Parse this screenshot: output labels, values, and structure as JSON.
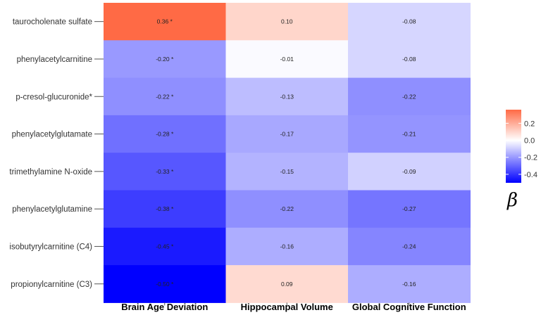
{
  "chart_data": {
    "type": "heatmap",
    "title": "",
    "xlabel": "",
    "ylabel": "",
    "rows": [
      "taurocholenate sulfate",
      "phenylacetylcarnitine",
      "p-cresol-glucuronide*",
      "phenylacetylglutamate",
      "trimethylamine N-oxide",
      "phenylacetylglutamine",
      "isobutyrylcarnitine (C4)",
      "propionylcarnitine (C3)"
    ],
    "columns": [
      "Brain Age Deviation",
      "Hippocampal Volume",
      "Global Cognitive Function"
    ],
    "values": [
      [
        0.36,
        0.1,
        -0.08
      ],
      [
        -0.2,
        -0.01,
        -0.08
      ],
      [
        -0.22,
        -0.13,
        -0.22
      ],
      [
        -0.28,
        -0.17,
        -0.21
      ],
      [
        -0.33,
        -0.15,
        -0.09
      ],
      [
        -0.38,
        -0.22,
        -0.27
      ],
      [
        -0.45,
        -0.16,
        -0.24
      ],
      [
        -0.5,
        0.09,
        -0.16
      ]
    ],
    "labels": [
      [
        "0.36 *",
        "0.10",
        "-0.08"
      ],
      [
        "-0.20 *",
        "-0.01",
        "-0.08"
      ],
      [
        "-0.22 *",
        "-0.13",
        "-0.22"
      ],
      [
        "-0.28 *",
        "-0.17",
        "-0.21"
      ],
      [
        "-0.33 *",
        "-0.15",
        "-0.09"
      ],
      [
        "-0.38 *",
        "-0.22",
        "-0.27"
      ],
      [
        "-0.45 *",
        "-0.16",
        "-0.24"
      ],
      [
        "-0.50 *",
        "0.09",
        "-0.16"
      ]
    ],
    "legend": {
      "title": "β",
      "ticks": [
        0.2,
        0.0,
        -0.2,
        -0.4
      ],
      "tick_labels": [
        "0.2",
        "0.0",
        "-0.2",
        "-0.4"
      ],
      "range": [
        -0.5,
        0.36
      ],
      "colors": {
        "low": "#0000ff",
        "mid": "#ffffff",
        "high": "#ff6a45"
      },
      "position": "right"
    }
  }
}
